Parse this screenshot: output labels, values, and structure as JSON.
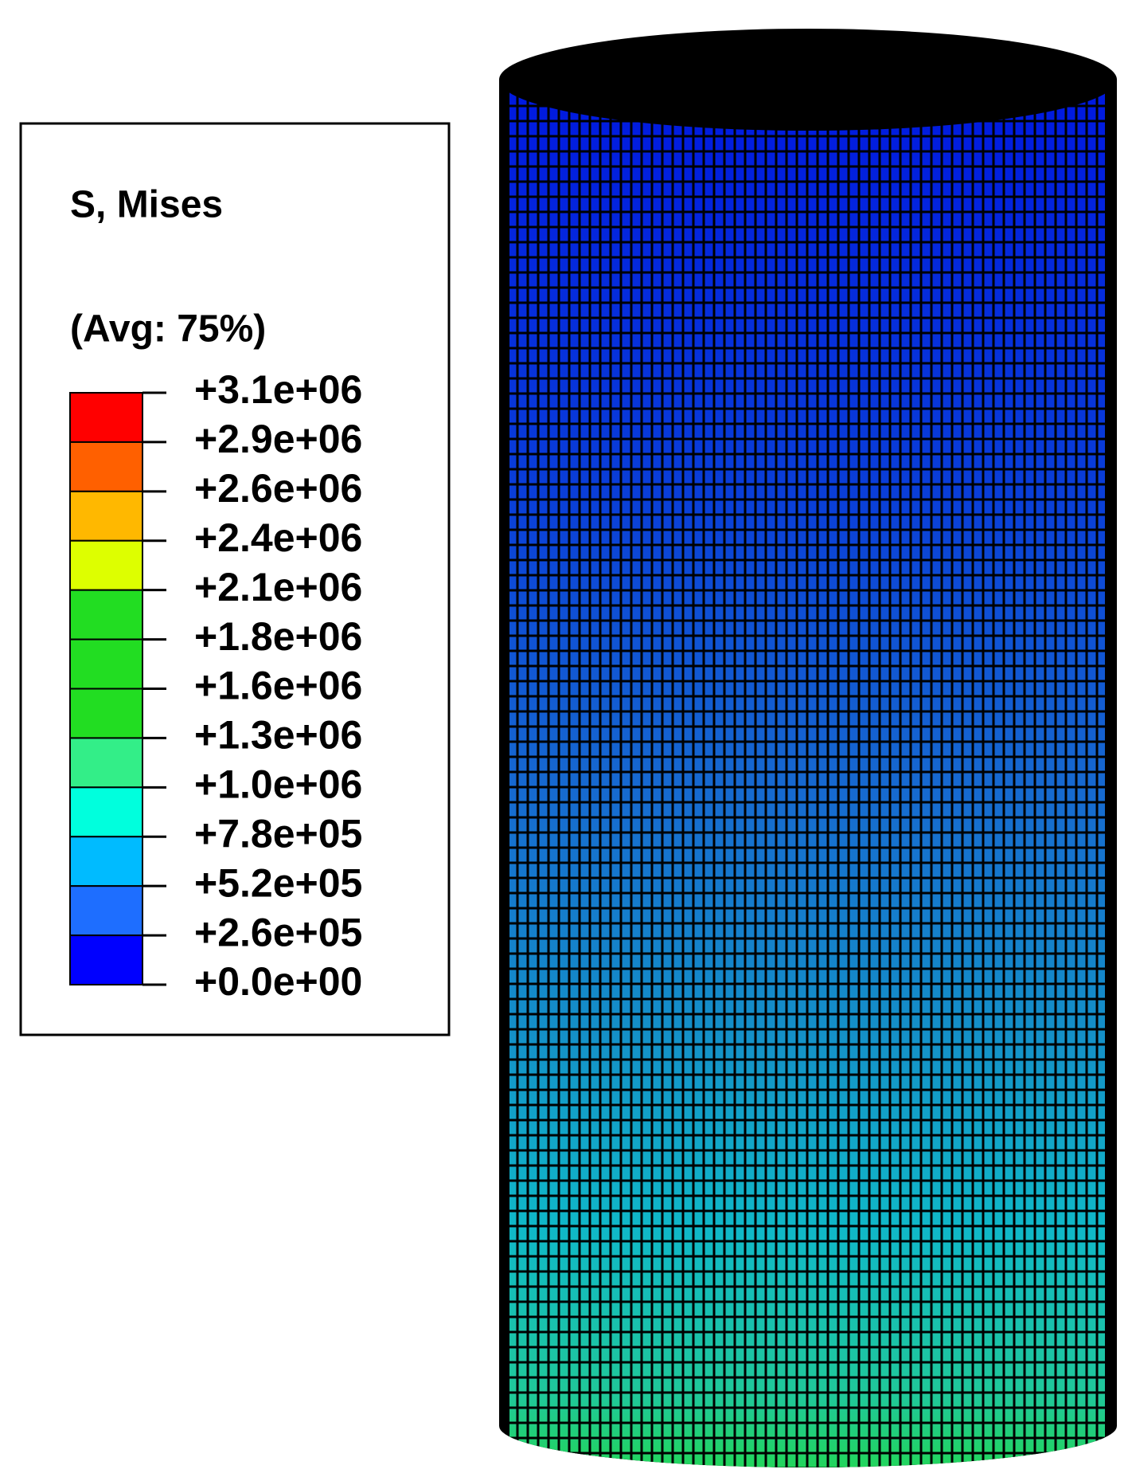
{
  "legend": {
    "title": "S, Mises",
    "subtitle": "(Avg: 75%)",
    "labels": [
      "+3.1e+06",
      "+2.9e+06",
      "+2.6e+06",
      "+2.4e+06",
      "+2.1e+06",
      "+1.8e+06",
      "+1.6e+06",
      "+1.3e+06",
      "+1.0e+06",
      "+7.8e+05",
      "+5.2e+05",
      "+2.6e+05",
      "+0.0e+00"
    ],
    "colors": [
      "#ff0000",
      "#ff6000",
      "#ffb800",
      "#ddff00",
      "#22dd22",
      "#22dd22",
      "#22dd22",
      "#33ee88",
      "#00ffdd",
      "#00bbff",
      "#1e6eff",
      "#0000ff"
    ]
  }
}
